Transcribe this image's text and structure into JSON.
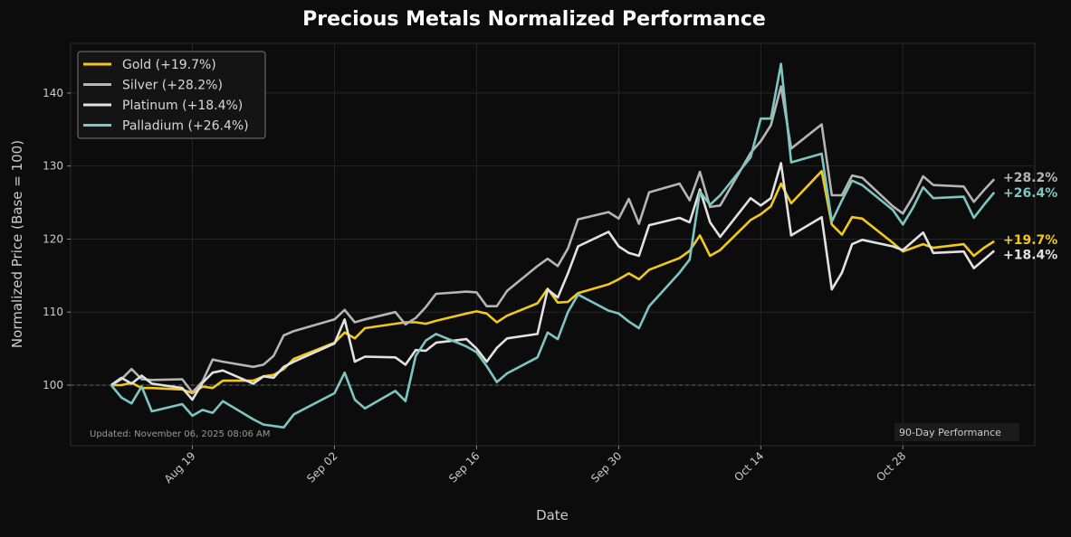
{
  "chart_data": {
    "type": "line",
    "title": "Precious Metals Normalized Performance",
    "xlabel": "Date",
    "ylabel": "Normalized Price (Base = 100)",
    "xlim": [
      "2025-08-07",
      "2025-11-10"
    ],
    "ylim": [
      91.7,
      146.8
    ],
    "x_ticks": [
      {
        "date": "2025-08-19",
        "label": "Aug 19"
      },
      {
        "date": "2025-09-02",
        "label": "Sep 02"
      },
      {
        "date": "2025-09-16",
        "label": "Sep 16"
      },
      {
        "date": "2025-09-30",
        "label": "Sep 30"
      },
      {
        "date": "2025-10-14",
        "label": "Oct 14"
      },
      {
        "date": "2025-10-28",
        "label": "Oct 28"
      }
    ],
    "y_ticks": [
      100,
      110,
      120,
      130,
      140
    ],
    "baseline": 100,
    "grid": true,
    "legend_position": "top-left",
    "annotation_left": "Updated: November 06, 2025 08:06 AM",
    "annotation_right": "90-Day Performance",
    "x": [
      "2025-08-11",
      "2025-08-12",
      "2025-08-13",
      "2025-08-14",
      "2025-08-15",
      "2025-08-18",
      "2025-08-19",
      "2025-08-20",
      "2025-08-21",
      "2025-08-22",
      "2025-08-25",
      "2025-08-26",
      "2025-08-27",
      "2025-08-28",
      "2025-08-29",
      "2025-09-02",
      "2025-09-03",
      "2025-09-04",
      "2025-09-05",
      "2025-09-08",
      "2025-09-09",
      "2025-09-10",
      "2025-09-11",
      "2025-09-12",
      "2025-09-15",
      "2025-09-16",
      "2025-09-17",
      "2025-09-18",
      "2025-09-19",
      "2025-09-22",
      "2025-09-23",
      "2025-09-24",
      "2025-09-25",
      "2025-09-26",
      "2025-09-29",
      "2025-09-30",
      "2025-10-01",
      "2025-10-02",
      "2025-10-03",
      "2025-10-06",
      "2025-10-07",
      "2025-10-08",
      "2025-10-09",
      "2025-10-10",
      "2025-10-13",
      "2025-10-14",
      "2025-10-15",
      "2025-10-16",
      "2025-10-17",
      "2025-10-20",
      "2025-10-21",
      "2025-10-22",
      "2025-10-23",
      "2025-10-24",
      "2025-10-27",
      "2025-10-28",
      "2025-10-29",
      "2025-10-30",
      "2025-10-31",
      "2025-11-03",
      "2025-11-04",
      "2025-11-05",
      "2025-11-06"
    ],
    "series": [
      {
        "name": "Gold (+19.7%)",
        "end_label": "+19.7%",
        "color": "#f2c919",
        "values": [
          100,
          100,
          100.3,
          99.6,
          99.6,
          99.4,
          98.9,
          99.8,
          99.6,
          100.6,
          100.6,
          101.2,
          101.4,
          102.2,
          103.6,
          105.8,
          107.2,
          106.4,
          107.8,
          108.4,
          108.6,
          108.6,
          108.4,
          108.8,
          109.8,
          110.1,
          109.8,
          108.6,
          109.5,
          111.2,
          113.2,
          111.3,
          111.4,
          112.6,
          113.8,
          114.5,
          115.3,
          114.5,
          115.8,
          117.4,
          118.4,
          120.5,
          117.7,
          118.5,
          122.6,
          123.4,
          124.5,
          127.6,
          124.9,
          129.3,
          122,
          120.6,
          123,
          122.8,
          119.5,
          118.3,
          118.8,
          119.3,
          118.8,
          119.3,
          117.7,
          118.8,
          119.7
        ]
      },
      {
        "name": "Silver (+28.2%)",
        "end_label": "+28.2%",
        "color": "#b5b5b5",
        "values": [
          100,
          100.8,
          102.2,
          100.8,
          100.7,
          100.8,
          99,
          100.5,
          103.5,
          103.2,
          102.5,
          102.8,
          104,
          106.8,
          107.4,
          109,
          110.3,
          108.6,
          109,
          110,
          108.3,
          109.2,
          110.7,
          112.5,
          112.8,
          112.7,
          110.8,
          110.8,
          112.9,
          116.3,
          117.3,
          116.3,
          118.7,
          122.7,
          123.7,
          122.8,
          125.5,
          122.1,
          126.4,
          127.6,
          125.3,
          129.2,
          124.4,
          124.6,
          131.8,
          133.4,
          135.6,
          140.9,
          132.4,
          135.7,
          126,
          126,
          128.7,
          128.4,
          124.5,
          123.5,
          125.8,
          128.6,
          127.4,
          127.2,
          125.1,
          126.7,
          128.2
        ]
      },
      {
        "name": "Platinum (+18.4%)",
        "end_label": "+18.4%",
        "color": "#e2e2e2",
        "values": [
          100,
          101,
          100.2,
          101.3,
          100.2,
          99.6,
          98,
          100.3,
          101.7,
          102,
          100.2,
          101.2,
          101,
          102.5,
          103.2,
          105.7,
          109,
          103.2,
          103.9,
          103.8,
          102.8,
          104.8,
          104.7,
          105.8,
          106.3,
          105,
          103.2,
          105.1,
          106.4,
          107,
          113.1,
          112,
          115.3,
          119,
          121,
          119,
          118.1,
          117.7,
          121.9,
          122.9,
          122.3,
          126.8,
          122.3,
          120.3,
          125.6,
          124.6,
          125.6,
          130.4,
          120.5,
          123,
          113.1,
          115.4,
          119.3,
          119.9,
          119,
          118.5,
          119.7,
          120.9,
          118.1,
          118.3,
          116,
          117.2,
          118.4
        ]
      },
      {
        "name": "Palladium (+26.4%)",
        "end_label": "+26.4%",
        "color": "#7cc6c4",
        "values": [
          100,
          98.3,
          97.5,
          99.8,
          96.4,
          97.4,
          95.8,
          96.6,
          96.2,
          97.8,
          95.3,
          94.6,
          94.4,
          94.2,
          96,
          98.9,
          101.7,
          98,
          96.8,
          99.2,
          97.8,
          104,
          106.1,
          107,
          105.3,
          104.5,
          102.6,
          100.4,
          101.6,
          103.8,
          107.2,
          106.3,
          110,
          112.4,
          110.2,
          109.8,
          108.7,
          107.8,
          110.8,
          115.4,
          117.2,
          126.5,
          124.7,
          126,
          131.2,
          136.5,
          136.5,
          144,
          130.5,
          131.7,
          122.4,
          125.3,
          128,
          127.4,
          124,
          122,
          124.3,
          127.1,
          125.6,
          125.8,
          122.9,
          124.7,
          126.4
        ]
      }
    ]
  },
  "colors": {
    "background": "#0c0c0c",
    "grid": "#262626",
    "axis_text": "#cccccc",
    "title": "#ffffff"
  }
}
